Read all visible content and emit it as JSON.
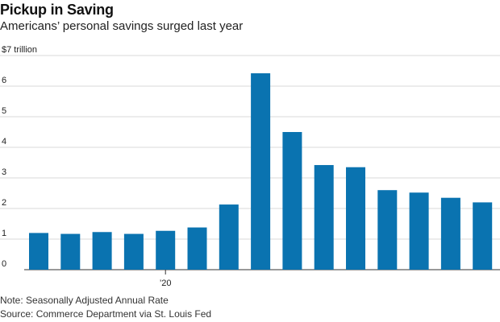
{
  "title": "Pickup in Saving",
  "subtitle": "Americans’ personal savings surged last year",
  "note": "Note: Seasonally Adjusted Annual Rate",
  "source": "Source: Commerce Department via St. Louis Fed",
  "colors": {
    "bar": "#0a73b0",
    "grid": "#d9d9d9",
    "axis": "#333333"
  },
  "chart_data": {
    "type": "bar",
    "title": "Pickup in Saving",
    "subtitle": "Americans’ personal savings surged last year",
    "ylabel": "",
    "xlabel": "",
    "y_unit_label": "$7 trillion",
    "ylim": [
      0,
      7
    ],
    "yticks": [
      0,
      1,
      2,
      3,
      4,
      5,
      6,
      7
    ],
    "ytick_labels": [
      "0",
      "1",
      "2",
      "3",
      "4",
      "5",
      "6",
      "$7 trillion"
    ],
    "x_label_ticks": [
      {
        "index": 4,
        "label": "’20"
      }
    ],
    "grid": true,
    "values": [
      1.2,
      1.17,
      1.23,
      1.17,
      1.27,
      1.38,
      2.13,
      6.42,
      4.5,
      3.42,
      3.35,
      2.6,
      2.52,
      2.35,
      2.2
    ]
  }
}
